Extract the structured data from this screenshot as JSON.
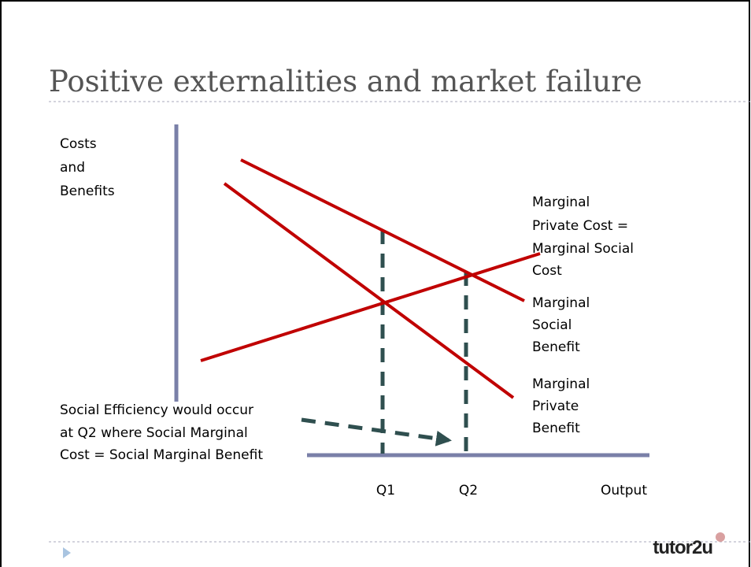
{
  "title": "Positive externalities and market failure",
  "y_axis_label": [
    "Costs",
    "and",
    "Benefits"
  ],
  "curves": [
    {
      "label": [
        "Marginal",
        "Private Cost =",
        "Marginal Social",
        "Cost"
      ]
    },
    {
      "label": [
        "Marginal",
        "Social",
        "Benefit"
      ]
    },
    {
      "label": [
        "Marginal",
        "Private",
        "Benefit"
      ]
    }
  ],
  "annotation": [
    "Social Efficiency would occur",
    "at Q2 where Social Marginal",
    "Cost = Social Marginal Benefit"
  ],
  "x_labels": [
    "Q1",
    "Q2"
  ],
  "x_axis_label": "Output",
  "logo": "tutor2u"
}
